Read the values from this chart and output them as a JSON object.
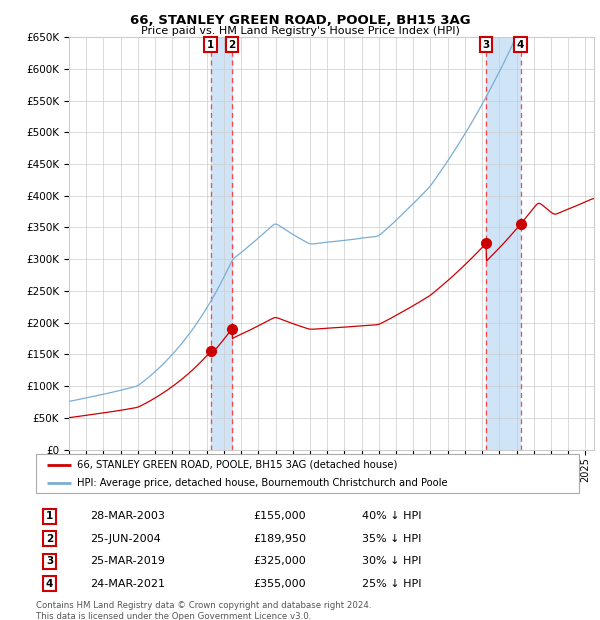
{
  "title1": "66, STANLEY GREEN ROAD, POOLE, BH15 3AG",
  "title2": "Price paid vs. HM Land Registry's House Price Index (HPI)",
  "legend_line1": "66, STANLEY GREEN ROAD, POOLE, BH15 3AG (detached house)",
  "legend_line2": "HPI: Average price, detached house, Bournemouth Christchurch and Poole",
  "footer1": "Contains HM Land Registry data © Crown copyright and database right 2024.",
  "footer2": "This data is licensed under the Open Government Licence v3.0.",
  "transactions": [
    {
      "num": 1,
      "date": "28-MAR-2003",
      "price": 155000,
      "pct": "40%",
      "year": 2003.23
    },
    {
      "num": 2,
      "date": "25-JUN-2004",
      "price": 189950,
      "pct": "35%",
      "year": 2004.48
    },
    {
      "num": 3,
      "date": "25-MAR-2019",
      "price": 325000,
      "pct": "30%",
      "year": 2019.23
    },
    {
      "num": 4,
      "date": "24-MAR-2021",
      "price": 355000,
      "pct": "25%",
      "year": 2021.23
    }
  ],
  "ylim": [
    0,
    650000
  ],
  "yticks": [
    0,
    50000,
    100000,
    150000,
    200000,
    250000,
    300000,
    350000,
    400000,
    450000,
    500000,
    550000,
    600000,
    650000
  ],
  "xlim_start": 1995.0,
  "xlim_end": 2025.5,
  "hpi_color": "#7aadd4",
  "property_color": "#cc0000",
  "grid_color": "#cccccc",
  "vline_color": "#ff4444",
  "shade_color": "#d0e4f7",
  "marker_color": "#cc0000",
  "box_color": "#cc0000",
  "background_color": "#ffffff"
}
